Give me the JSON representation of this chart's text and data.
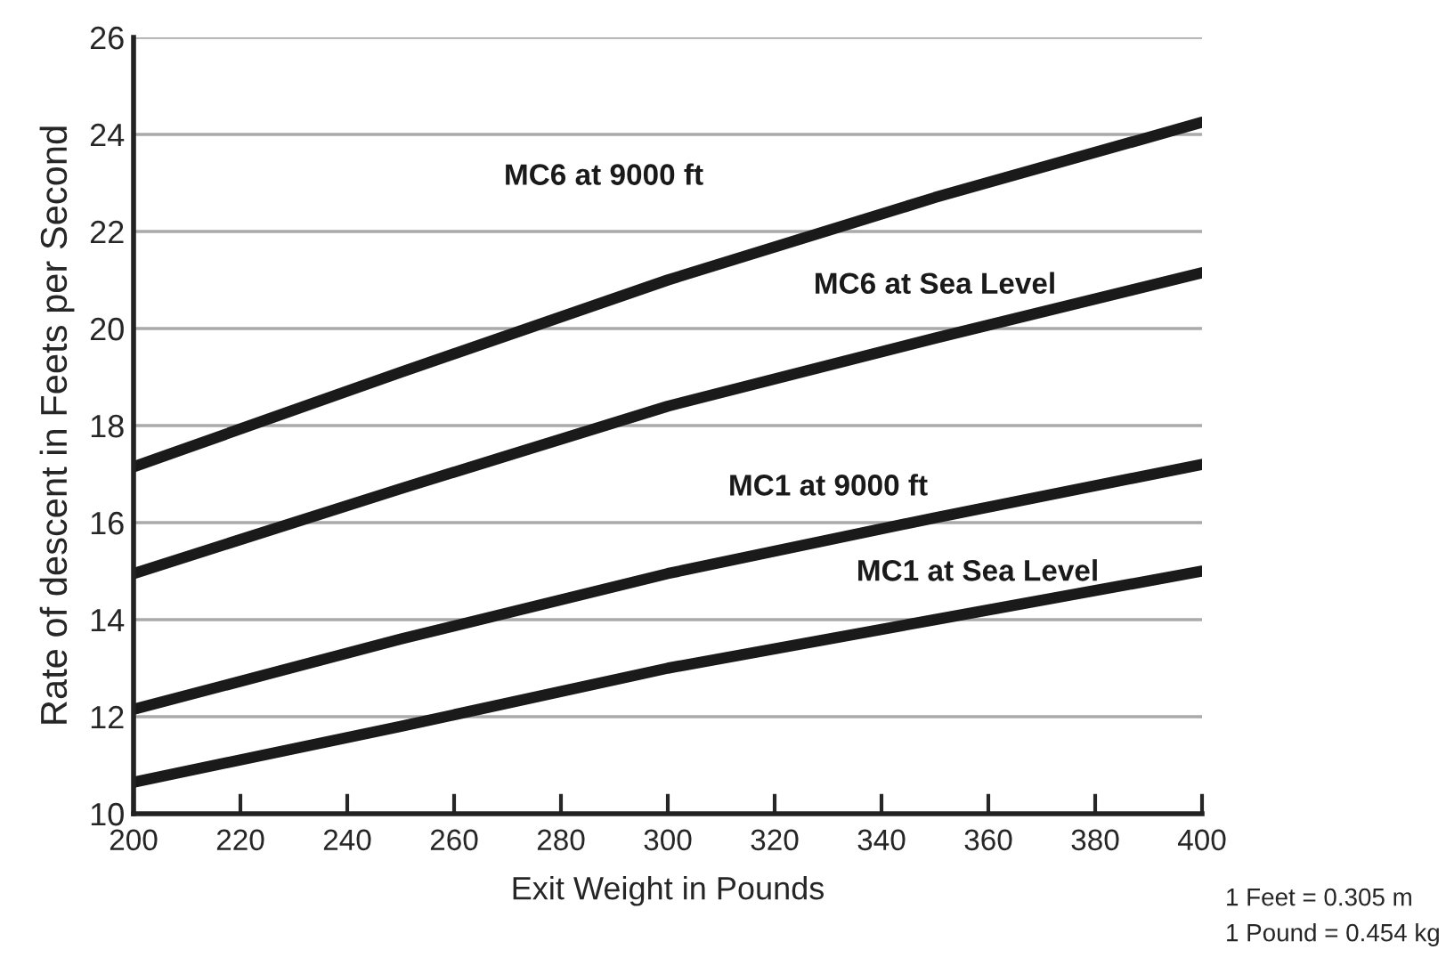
{
  "chart_data": {
    "type": "line",
    "xlabel": "Exit Weight in Pounds",
    "ylabel": "Rate of descent in Feets per Second",
    "x": [
      200,
      250,
      300,
      350,
      400
    ],
    "series": [
      {
        "name": "MC6 at 9000 ft",
        "color": "#1a1a1a",
        "values": [
          17.15,
          19.1,
          21.0,
          22.7,
          24.25
        ]
      },
      {
        "name": "MC6 at Sea Level",
        "color": "#1a1a1a",
        "values": [
          14.95,
          16.7,
          18.4,
          19.8,
          21.15
        ]
      },
      {
        "name": "MC1 at 9000 ft",
        "color": "#1a1a1a",
        "values": [
          12.15,
          13.6,
          14.95,
          16.1,
          17.2
        ]
      },
      {
        "name": "MC1 at Sea Level",
        "color": "#1a1a1a",
        "values": [
          10.65,
          11.8,
          13.0,
          14.0,
          15.0
        ]
      }
    ],
    "xlim": [
      200,
      400
    ],
    "xticks": [
      200,
      220,
      240,
      260,
      280,
      300,
      320,
      340,
      360,
      380,
      400
    ],
    "ylim": [
      10,
      26
    ],
    "yticks": [
      10,
      12,
      14,
      16,
      18,
      20,
      22,
      24,
      26
    ],
    "grid": "y",
    "legend": false,
    "marker": "none",
    "line_style": "solid",
    "annotations": [
      "1 Feet = 0.305 m",
      "1 Pound = 0.454 kg"
    ]
  }
}
